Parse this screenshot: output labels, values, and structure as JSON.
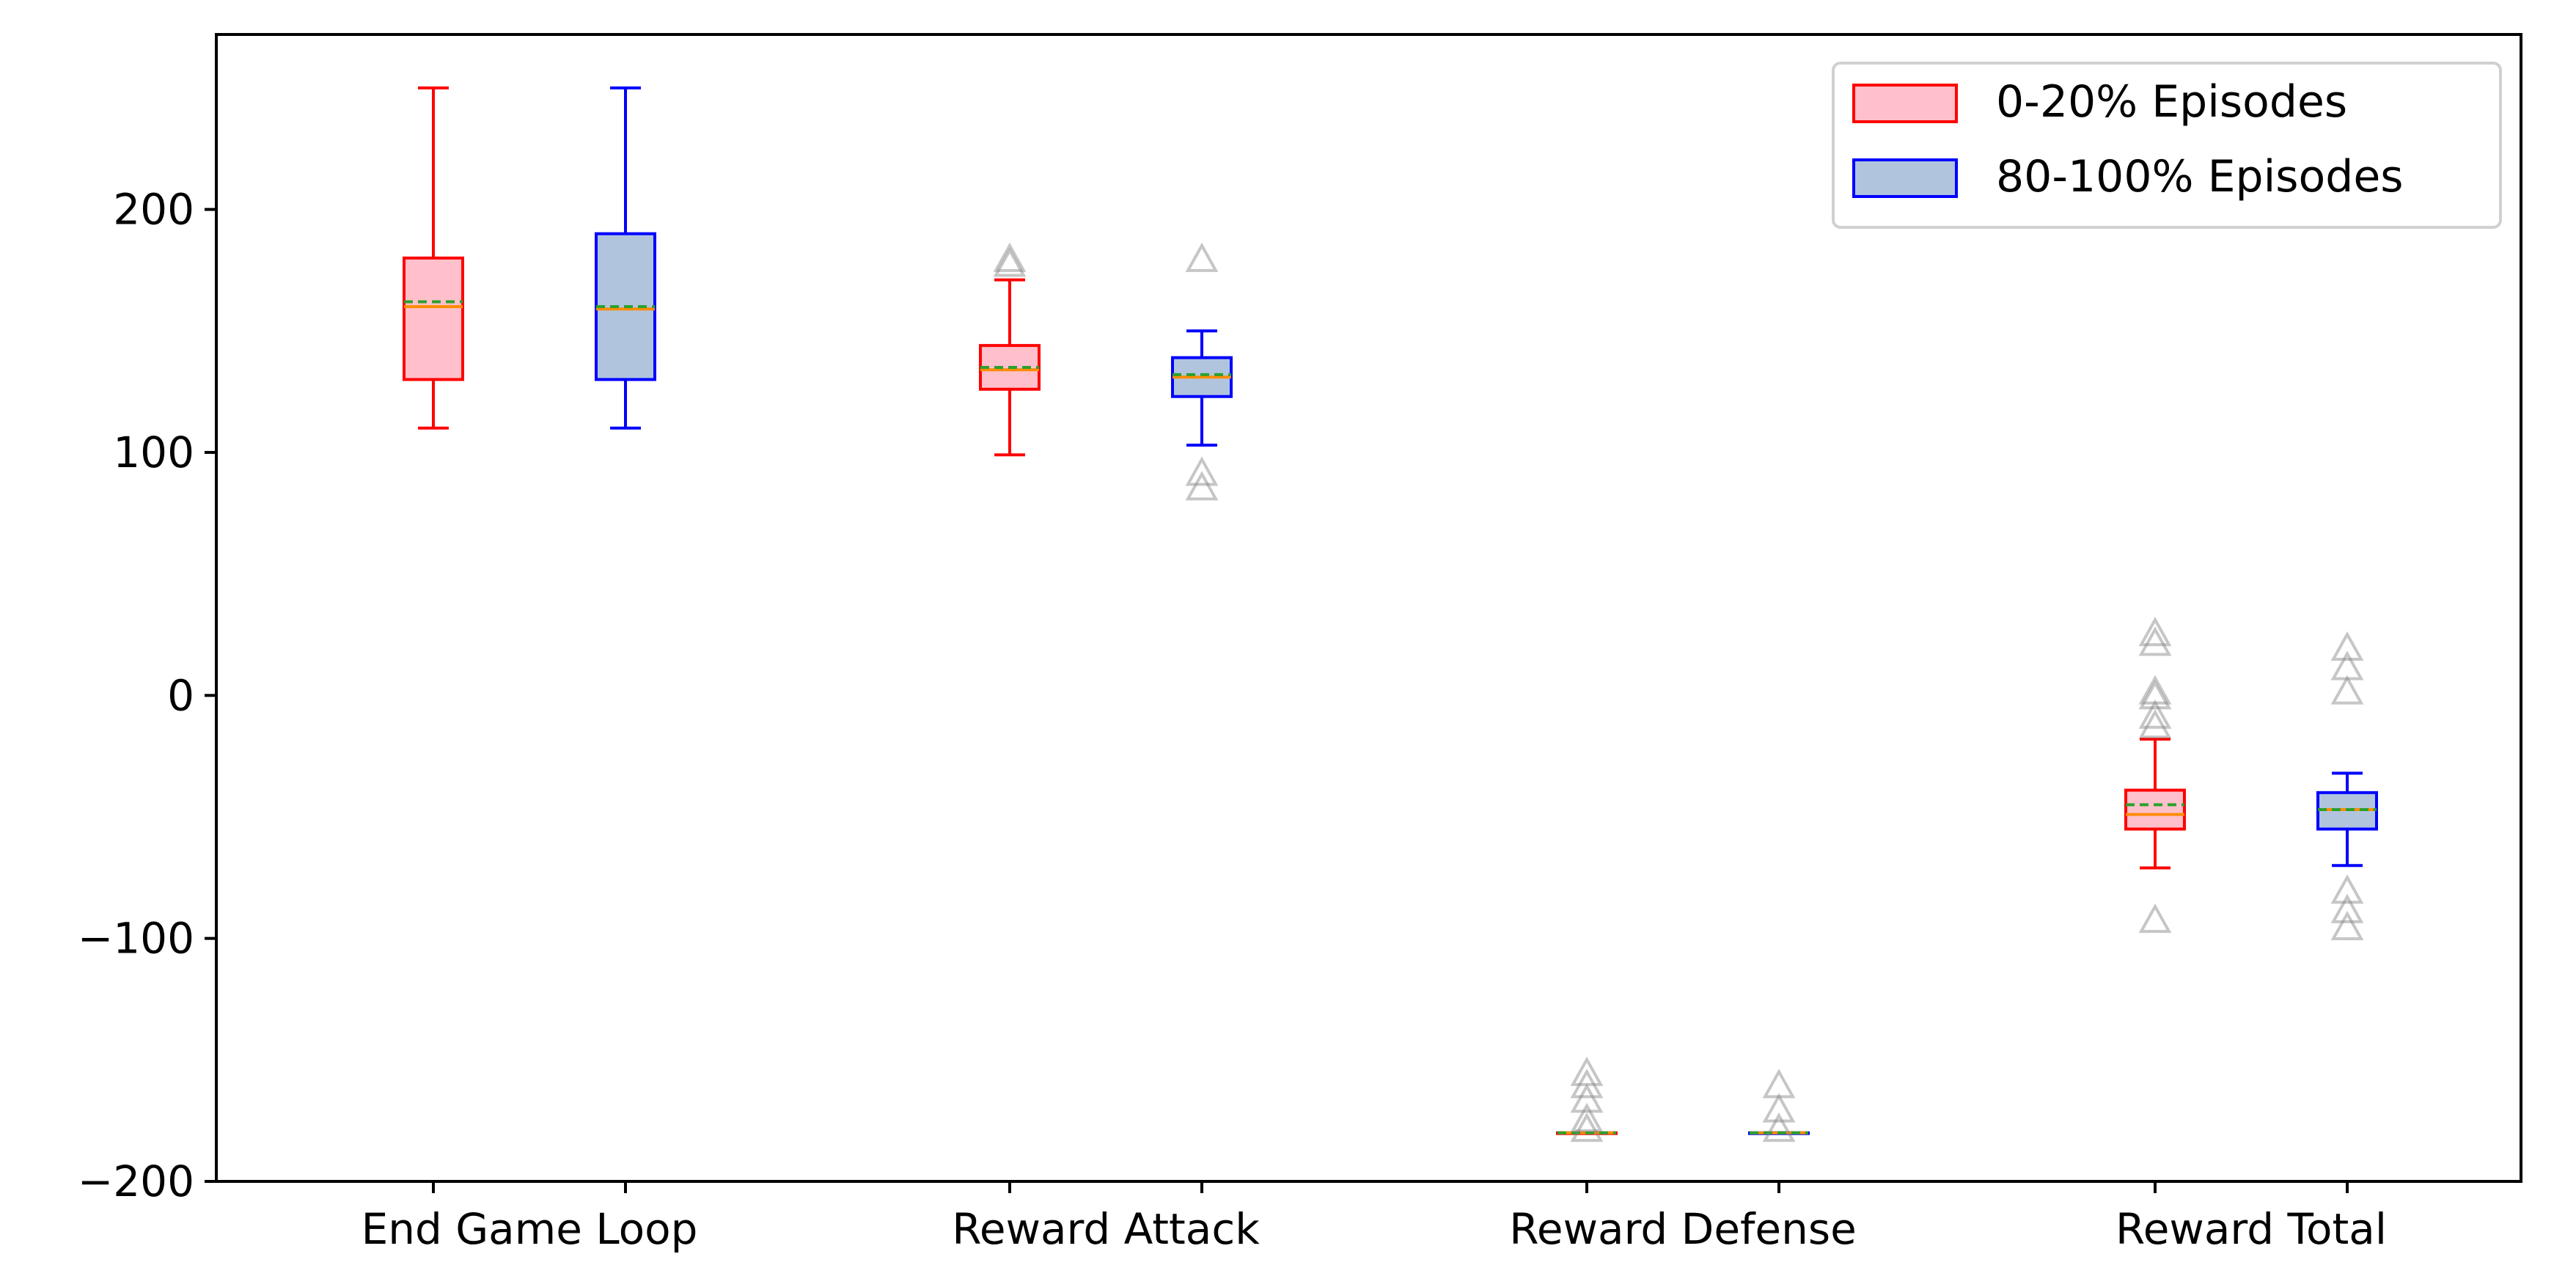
{
  "chart_data": {
    "type": "box",
    "title": "",
    "xlabel": "",
    "ylabel": "",
    "ylim": [
      -200,
      272
    ],
    "yticks": [
      -200,
      -100,
      0,
      100,
      200
    ],
    "ytick_labels": [
      "−200",
      "−100",
      "0",
      "100",
      "200"
    ],
    "grid": false,
    "legend_position": "top-right",
    "categories": [
      "End Game Loop",
      "Reward Attack",
      "Reward Defense",
      "Reward Total"
    ],
    "series": [
      {
        "name": "0-20% Episodes",
        "edge_color": "#ff0000",
        "fill_color": "#ffc0cb",
        "boxes": [
          {
            "whisker_low": 110,
            "q1": 130,
            "median": 160,
            "mean": 162,
            "q3": 180,
            "whisker_high": 250,
            "outliers": []
          },
          {
            "whisker_low": 99,
            "q1": 126,
            "median": 134,
            "mean": 135,
            "q3": 144,
            "whisker_high": 171,
            "outliers": [
              180,
              178
            ]
          },
          {
            "whisker_low": -180,
            "q1": -180,
            "median": -180,
            "mean": -180,
            "q3": -180,
            "whisker_high": -180,
            "outliers": [
              -155,
              -160,
              -166,
              -174,
              -178
            ]
          },
          {
            "whisker_low": -71,
            "q1": -55,
            "median": -49,
            "mean": -45,
            "q3": -39,
            "whisker_high": -18,
            "outliers": [
              26,
              22,
              2,
              0,
              -8,
              -12,
              -92
            ]
          }
        ]
      },
      {
        "name": "80-100% Episodes",
        "edge_color": "#0000ff",
        "fill_color": "#b0c4de",
        "boxes": [
          {
            "whisker_low": 110,
            "q1": 130,
            "median": 159,
            "mean": 160,
            "q3": 190,
            "whisker_high": 250,
            "outliers": []
          },
          {
            "whisker_low": 103,
            "q1": 123,
            "median": 131,
            "mean": 132,
            "q3": 139,
            "whisker_high": 150,
            "outliers": [
              180,
              92,
              86
            ]
          },
          {
            "whisker_low": -180,
            "q1": -180,
            "median": -180,
            "mean": -180,
            "q3": -180,
            "whisker_high": -180,
            "outliers": [
              -160,
              -170,
              -178
            ]
          },
          {
            "whisker_low": -70,
            "q1": -55,
            "median": -47,
            "mean": -47,
            "q3": -40,
            "whisker_high": -32,
            "outliers": [
              20,
              12,
              2,
              -80,
              -88,
              -95
            ]
          }
        ]
      }
    ],
    "median_color": "#ff8c00",
    "mean_color": "#2ca02c",
    "outlier_color": "#808080"
  }
}
